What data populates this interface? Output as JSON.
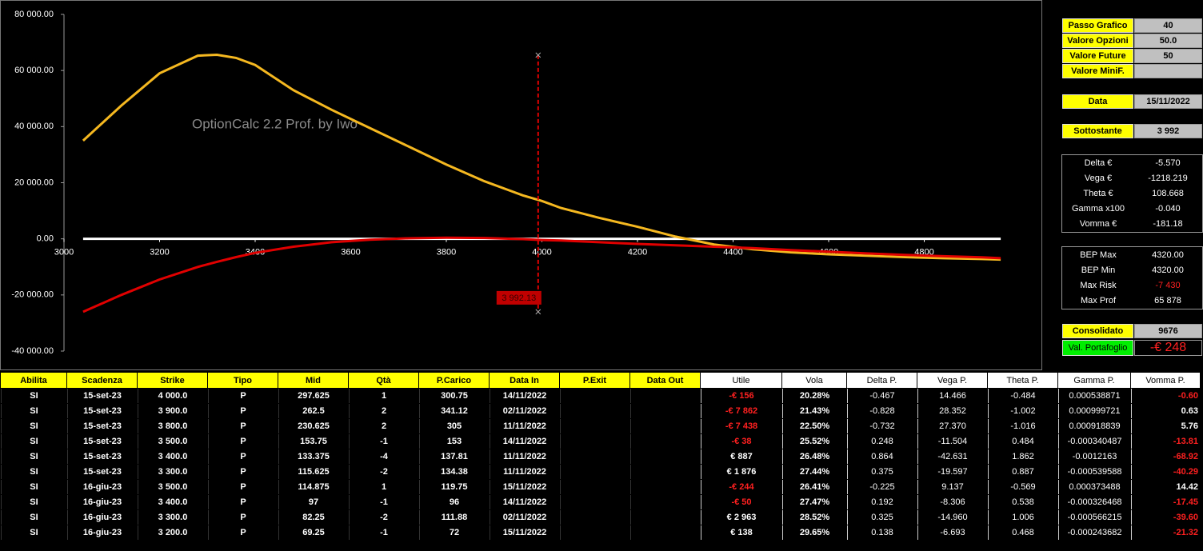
{
  "chart_data": {
    "type": "line",
    "watermark": "OptionCalc 2.2 Prof. by Iwo",
    "x": [
      3040,
      3120,
      3200,
      3280,
      3320,
      3360,
      3400,
      3480,
      3560,
      3640,
      3720,
      3800,
      3880,
      3960,
      4000,
      4040,
      4120,
      4200,
      4280,
      4360,
      4440,
      4520,
      4600,
      4680,
      4760,
      4840,
      4920,
      4960
    ],
    "series": [
      {
        "color": "#f5b820",
        "values": [
          35000,
          47500,
          59000,
          65300,
          65600,
          64500,
          62000,
          53000,
          46000,
          39500,
          33000,
          26500,
          20500,
          15500,
          13500,
          11000,
          7500,
          4300,
          800,
          -2000,
          -3700,
          -4800,
          -5500,
          -6000,
          -6500,
          -6900,
          -7200,
          -7400
        ]
      },
      {
        "color": "#e00000",
        "values": [
          -26000,
          -20000,
          -14500,
          -10000,
          -8200,
          -6500,
          -5000,
          -2800,
          -1200,
          -300,
          200,
          400,
          300,
          -100,
          -400,
          -600,
          -1200,
          -1800,
          -2300,
          -2800,
          -3300,
          -4000,
          -4600,
          -5200,
          -5700,
          -6200,
          -6600,
          -6900
        ]
      }
    ],
    "xlim": [
      3000,
      5000
    ],
    "xticks": [
      3000,
      3200,
      3400,
      3600,
      3800,
      4000,
      4200,
      4400,
      4600,
      4800
    ],
    "ylim": [
      -40000,
      80000
    ],
    "yticks": [
      {
        "value": -40000,
        "label": "-40 000.00"
      },
      {
        "value": -20000,
        "label": "-20 000.00"
      },
      {
        "value": 0,
        "label": "0.00"
      },
      {
        "value": 20000,
        "label": "20 000.00"
      },
      {
        "value": 40000,
        "label": "40 000.00"
      },
      {
        "value": 60000,
        "label": "60 000.00"
      },
      {
        "value": 80000,
        "label": "80 000.00"
      }
    ],
    "cursor": {
      "x": 3992.13,
      "label": "3 992.13",
      "top": 65500,
      "bottom": -26000,
      "color": "#e00000"
    }
  },
  "panel": {
    "settings": [
      {
        "label": "Passo Grafico",
        "value": "40"
      },
      {
        "label": "Valore Opzioni",
        "value": "50.0"
      },
      {
        "label": "Valore Future",
        "value": "50"
      },
      {
        "label": "Valore MiniF."
      }
    ],
    "data": {
      "label": "Data",
      "value": "15/11/2022"
    },
    "sottostante": {
      "label": "Sottostante",
      "value": "3 992"
    },
    "greeks": [
      {
        "label": "Delta €",
        "value": "-5.570"
      },
      {
        "label": "Vega €",
        "value": "-1218.219"
      },
      {
        "label": "Theta €",
        "value": "108.668"
      },
      {
        "label": "Gamma x100",
        "value": "-0.040"
      },
      {
        "label": "Vomma €",
        "value": "-181.18"
      }
    ],
    "risk": [
      {
        "label": "BEP Max",
        "value": "4320.00"
      },
      {
        "label": "BEP Min",
        "value": "4320.00"
      },
      {
        "label": "Max Risk",
        "value": "-7 430"
      },
      {
        "label": "Max Prof",
        "value": "65 878"
      }
    ],
    "consolidato": {
      "label": "Consolidato",
      "value": "9676"
    },
    "portafoglio": {
      "label": "Val. Portafoglio",
      "value": "-€ 248"
    }
  },
  "table": {
    "columns": [
      "Abilita",
      "Scadenza",
      "Strike",
      "Tipo",
      "Mid",
      "Qtà",
      "P.Carico",
      "Data In",
      "P.Exit",
      "Data Out",
      "Utile",
      "Vola",
      "Delta P.",
      "Vega P.",
      "Theta P.",
      "Gamma P.",
      "Vomma P."
    ],
    "rows": [
      [
        "SI",
        "15-set-23",
        "4 000.0",
        "P",
        "297.625",
        "1",
        "300.75",
        "14/11/2022",
        null,
        null,
        "-€ 156",
        "20.28%",
        "-0.467",
        "14.466",
        "-0.484",
        "0.000538871",
        "-0.60"
      ],
      [
        "SI",
        "15-set-23",
        "3 900.0",
        "P",
        "262.5",
        "2",
        "341.12",
        "02/11/2022",
        null,
        null,
        "-€ 7 862",
        "21.43%",
        "-0.828",
        "28.352",
        "-1.002",
        "0.000999721",
        "0.63"
      ],
      [
        "SI",
        "15-set-23",
        "3 800.0",
        "P",
        "230.625",
        "2",
        "305",
        "11/11/2022",
        null,
        null,
        "-€ 7 438",
        "22.50%",
        "-0.732",
        "27.370",
        "-1.016",
        "0.000918839",
        "5.76"
      ],
      [
        "SI",
        "15-set-23",
        "3 500.0",
        "P",
        "153.75",
        "-1",
        "153",
        "14/11/2022",
        null,
        null,
        "-€ 38",
        "25.52%",
        "0.248",
        "-11.504",
        "0.484",
        "-0.000340487",
        "-13.81"
      ],
      [
        "SI",
        "15-set-23",
        "3 400.0",
        "P",
        "133.375",
        "-4",
        "137.81",
        "11/11/2022",
        null,
        null,
        "€ 887",
        "26.48%",
        "0.864",
        "-42.631",
        "1.862",
        "-0.0012163",
        "-68.92"
      ],
      [
        "SI",
        "15-set-23",
        "3 300.0",
        "P",
        "115.625",
        "-2",
        "134.38",
        "11/11/2022",
        null,
        null,
        "€ 1 876",
        "27.44%",
        "0.375",
        "-19.597",
        "0.887",
        "-0.000539588",
        "-40.29"
      ],
      [
        "SI",
        "16-giu-23",
        "3 500.0",
        "P",
        "114.875",
        "1",
        "119.75",
        "15/11/2022",
        null,
        null,
        "-€ 244",
        "26.41%",
        "-0.225",
        "9.137",
        "-0.569",
        "0.000373488",
        "14.42"
      ],
      [
        "SI",
        "16-giu-23",
        "3 400.0",
        "P",
        "97",
        "-1",
        "96",
        "14/11/2022",
        null,
        null,
        "-€ 50",
        "27.47%",
        "0.192",
        "-8.306",
        "0.538",
        "-0.000326468",
        "-17.45"
      ],
      [
        "SI",
        "16-giu-23",
        "3 300.0",
        "P",
        "82.25",
        "-2",
        "111.88",
        "02/11/2022",
        null,
        null,
        "€ 2 963",
        "28.52%",
        "0.325",
        "-14.960",
        "1.006",
        "-0.000566215",
        "-39.60"
      ],
      [
        "SI",
        "16-giu-23",
        "3 200.0",
        "P",
        "69.25",
        "-1",
        "72",
        "15/11/2022",
        null,
        null,
        "€ 138",
        "29.65%",
        "0.138",
        "-6.693",
        "0.468",
        "-0.000243682",
        "-21.32"
      ]
    ]
  }
}
